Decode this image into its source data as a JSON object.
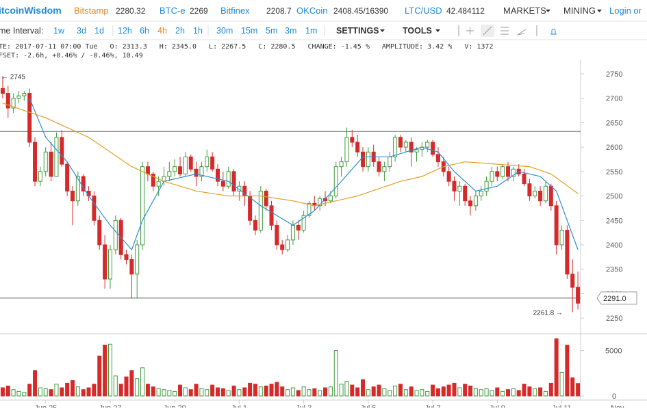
{
  "header": {
    "brand": "itcoinWisdom",
    "tickers": [
      {
        "name": "Bitstamp",
        "price": "2280.32"
      },
      {
        "name": "BTC-e",
        "price": "2269"
      },
      {
        "name": "Bitfinex",
        "price": "2208.7"
      },
      {
        "name": "OKCoin",
        "price": "2408.45/16390"
      },
      {
        "name": "LTC/USD",
        "price": "42.484112"
      }
    ],
    "menus": [
      "MARKETS",
      "MINING"
    ],
    "login": "Login or"
  },
  "toolbar": {
    "label": "me Interval:",
    "intervals": [
      "1w",
      "3d",
      "1d",
      "12h",
      "6h",
      "4h",
      "2h",
      "1h",
      "30m",
      "15m",
      "5m",
      "3m",
      "1m"
    ],
    "active": "4h",
    "settings": "SETTINGS",
    "tools": "TOOLS"
  },
  "info": {
    "line1": "TE: 2017-07-11 07:00 Tue   O: 2313.3   H: 2345.0   L: 2267.5   C: 2280.5   CHANGE: -1.45 %   AMPLITUDE: 3.42 %   V: 1372",
    "line2": "FSET: -2.6h, +0.46% / -0.46%, 10.49"
  },
  "chart_data": {
    "type": "candlestick",
    "up_color": "#3c9a3c",
    "down_color": "#d62a2a",
    "xlim": [
      -0.5,
      107.5
    ],
    "ylim": [
      2218,
      2778
    ],
    "yticks": [
      2250,
      2300,
      2350,
      2400,
      2450,
      2500,
      2550,
      2600,
      2650,
      2700,
      2750
    ],
    "vlim": [
      0,
      6700
    ],
    "vticks": [
      0,
      5000
    ],
    "xticks": [
      {
        "value": 8,
        "label": "Jun 25"
      },
      {
        "value": 20,
        "label": "Jun 27"
      },
      {
        "value": 32,
        "label": "Jun 29"
      },
      {
        "value": 44,
        "label": "Jul 1"
      },
      {
        "value": 56,
        "label": "Jul 3"
      },
      {
        "value": 68,
        "label": "Jul 5"
      },
      {
        "value": 80,
        "label": "Jul 7"
      },
      {
        "value": 92,
        "label": "Jul 9"
      },
      {
        "value": 104,
        "label": "Jul 11"
      }
    ],
    "hlines": [
      2632,
      2291
    ],
    "max_label": "← 2745",
    "min_label": "2261.8 →",
    "last_label": "2291.0",
    "candles": [
      [
        2720,
        2745,
        2700,
        2710,
        900
      ],
      [
        2710,
        2725,
        2660,
        2680,
        1100
      ],
      [
        2680,
        2710,
        2670,
        2700,
        700
      ],
      [
        2700,
        2715,
        2690,
        2705,
        500
      ],
      [
        2705,
        2715,
        2695,
        2710,
        400
      ],
      [
        2710,
        2720,
        2600,
        2610,
        1300
      ],
      [
        2610,
        2620,
        2520,
        2530,
        2800
      ],
      [
        2530,
        2560,
        2520,
        2550,
        900
      ],
      [
        2550,
        2600,
        2540,
        2590,
        800
      ],
      [
        2590,
        2610,
        2530,
        2540,
        700
      ],
      [
        2540,
        2630,
        2540,
        2620,
        1300
      ],
      [
        2620,
        2635,
        2560,
        2565,
        900
      ],
      [
        2565,
        2570,
        2500,
        2510,
        1400
      ],
      [
        2510,
        2520,
        2440,
        2490,
        1700
      ],
      [
        2490,
        2550,
        2480,
        2540,
        1000
      ],
      [
        2540,
        2545,
        2500,
        2510,
        700
      ],
      [
        2510,
        2520,
        2490,
        2500,
        900
      ],
      [
        2500,
        2510,
        2440,
        2450,
        1300
      ],
      [
        2450,
        2460,
        2390,
        2400,
        4400
      ],
      [
        2400,
        2420,
        2310,
        2330,
        5600
      ],
      [
        2330,
        2400,
        2310,
        2390,
        5700
      ],
      [
        2390,
        2460,
        2380,
        2450,
        2200
      ],
      [
        2450,
        2455,
        2370,
        2380,
        1300
      ],
      [
        2380,
        2390,
        2360,
        2370,
        2100
      ],
      [
        2370,
        2380,
        2290,
        2340,
        2800
      ],
      [
        2340,
        2410,
        2290,
        2400,
        1900
      ],
      [
        2400,
        2570,
        2390,
        2560,
        3100
      ],
      [
        2560,
        2570,
        2530,
        2545,
        1300
      ],
      [
        2545,
        2550,
        2510,
        2520,
        1000
      ],
      [
        2520,
        2540,
        2500,
        2530,
        800
      ],
      [
        2530,
        2560,
        2520,
        2540,
        700
      ],
      [
        2540,
        2570,
        2530,
        2550,
        600
      ],
      [
        2550,
        2575,
        2540,
        2560,
        500
      ],
      [
        2560,
        2580,
        2540,
        2545,
        1200
      ],
      [
        2545,
        2590,
        2540,
        2580,
        900
      ],
      [
        2580,
        2585,
        2550,
        2555,
        700
      ],
      [
        2555,
        2570,
        2520,
        2540,
        1300
      ],
      [
        2540,
        2570,
        2530,
        2560,
        800
      ],
      [
        2560,
        2595,
        2550,
        2580,
        700
      ],
      [
        2580,
        2590,
        2550,
        2555,
        1200
      ],
      [
        2555,
        2565,
        2520,
        2530,
        900
      ],
      [
        2530,
        2550,
        2510,
        2520,
        800
      ],
      [
        2520,
        2560,
        2515,
        2550,
        600
      ],
      [
        2550,
        2555,
        2500,
        2510,
        1100
      ],
      [
        2510,
        2530,
        2490,
        2520,
        700
      ],
      [
        2520,
        2530,
        2480,
        2500,
        900
      ],
      [
        2500,
        2510,
        2440,
        2450,
        1400
      ],
      [
        2450,
        2460,
        2420,
        2430,
        1300
      ],
      [
        2430,
        2520,
        2425,
        2510,
        1000
      ],
      [
        2510,
        2515,
        2470,
        2480,
        1100
      ],
      [
        2480,
        2490,
        2430,
        2440,
        1300
      ],
      [
        2440,
        2450,
        2390,
        2400,
        1500
      ],
      [
        2400,
        2410,
        2380,
        2390,
        1000
      ],
      [
        2390,
        2420,
        2385,
        2410,
        700
      ],
      [
        2410,
        2450,
        2400,
        2440,
        900
      ],
      [
        2440,
        2450,
        2410,
        2430,
        600
      ],
      [
        2430,
        2470,
        2425,
        2460,
        1000
      ],
      [
        2460,
        2490,
        2455,
        2485,
        700
      ],
      [
        2485,
        2500,
        2470,
        2480,
        800
      ],
      [
        2480,
        2500,
        2470,
        2495,
        600
      ],
      [
        2495,
        2510,
        2480,
        2490,
        900
      ],
      [
        2490,
        2510,
        2485,
        2500,
        1000
      ],
      [
        2500,
        2570,
        2495,
        2560,
        5000
      ],
      [
        2560,
        2580,
        2540,
        2570,
        1300
      ],
      [
        2570,
        2640,
        2560,
        2620,
        1600
      ],
      [
        2620,
        2635,
        2600,
        2610,
        1200
      ],
      [
        2610,
        2625,
        2580,
        2590,
        900
      ],
      [
        2590,
        2600,
        2550,
        2560,
        1800
      ],
      [
        2560,
        2600,
        2550,
        2590,
        700
      ],
      [
        2590,
        2605,
        2560,
        2570,
        1000
      ],
      [
        2570,
        2580,
        2540,
        2550,
        1200
      ],
      [
        2550,
        2570,
        2530,
        2560,
        800
      ],
      [
        2560,
        2590,
        2550,
        2580,
        600
      ],
      [
        2580,
        2625,
        2570,
        2620,
        1100
      ],
      [
        2620,
        2625,
        2590,
        2600,
        1300
      ],
      [
        2600,
        2615,
        2590,
        2610,
        700
      ],
      [
        2610,
        2620,
        2560,
        2590,
        1000
      ],
      [
        2590,
        2600,
        2570,
        2595,
        600
      ],
      [
        2595,
        2610,
        2580,
        2600,
        700
      ],
      [
        2600,
        2615,
        2590,
        2610,
        500
      ],
      [
        2610,
        2615,
        2580,
        2585,
        1200
      ],
      [
        2585,
        2600,
        2560,
        2570,
        800
      ],
      [
        2570,
        2580,
        2540,
        2550,
        1000
      ],
      [
        2550,
        2560,
        2520,
        2530,
        1200
      ],
      [
        2530,
        2540,
        2490,
        2510,
        1400
      ],
      [
        2510,
        2530,
        2480,
        2520,
        900
      ],
      [
        2520,
        2525,
        2480,
        2490,
        1300
      ],
      [
        2490,
        2500,
        2460,
        2480,
        1100
      ],
      [
        2480,
        2510,
        2470,
        2500,
        800
      ],
      [
        2500,
        2520,
        2490,
        2510,
        700
      ],
      [
        2510,
        2540,
        2500,
        2530,
        800
      ],
      [
        2530,
        2560,
        2520,
        2550,
        600
      ],
      [
        2550,
        2560,
        2530,
        2540,
        900
      ],
      [
        2540,
        2565,
        2535,
        2560,
        500
      ],
      [
        2560,
        2570,
        2530,
        2540,
        700
      ],
      [
        2540,
        2560,
        2530,
        2555,
        800
      ],
      [
        2555,
        2565,
        2540,
        2545,
        600
      ],
      [
        2545,
        2555,
        2520,
        2525,
        1300
      ],
      [
        2525,
        2535,
        2490,
        2500,
        1000
      ],
      [
        2500,
        2520,
        2495,
        2510,
        800
      ],
      [
        2510,
        2520,
        2480,
        2490,
        900
      ],
      [
        2490,
        2530,
        2485,
        2520,
        500
      ],
      [
        2520,
        2525,
        2470,
        2480,
        1400
      ],
      [
        2480,
        2490,
        2380,
        2400,
        6300
      ],
      [
        2400,
        2440,
        2390,
        2430,
        2600
      ],
      [
        2430,
        2440,
        2330,
        2340,
        5600
      ],
      [
        2340,
        2370,
        2262,
        2313,
        2000
      ],
      [
        2313,
        2345,
        2267.5,
        2280.5,
        1372
      ]
    ],
    "ma": [
      {
        "color": "#2b8cd6",
        "x": [
          5,
          8,
          12,
          16,
          20,
          24,
          26,
          30,
          36,
          42,
          48,
          54,
          58,
          63,
          67,
          72,
          78,
          81,
          84,
          88,
          92,
          96,
          100,
          103,
          105,
          107
        ],
        "values": [
          2700,
          2620,
          2570,
          2500,
          2440,
          2390,
          2450,
          2530,
          2545,
          2530,
          2480,
          2440,
          2470,
          2530,
          2580,
          2580,
          2600,
          2590,
          2550,
          2510,
          2520,
          2550,
          2540,
          2510,
          2450,
          2390
        ]
      },
      {
        "color": "#e59c1f",
        "x": [
          0,
          8,
          16,
          24,
          30,
          36,
          42,
          48,
          54,
          58,
          66,
          74,
          78,
          82,
          86,
          92,
          98,
          102,
          107
        ],
        "values": [
          2690,
          2660,
          2620,
          2560,
          2530,
          2510,
          2500,
          2500,
          2490,
          2480,
          2500,
          2530,
          2540,
          2560,
          2570,
          2565,
          2560,
          2545,
          2505
        ]
      }
    ]
  }
}
